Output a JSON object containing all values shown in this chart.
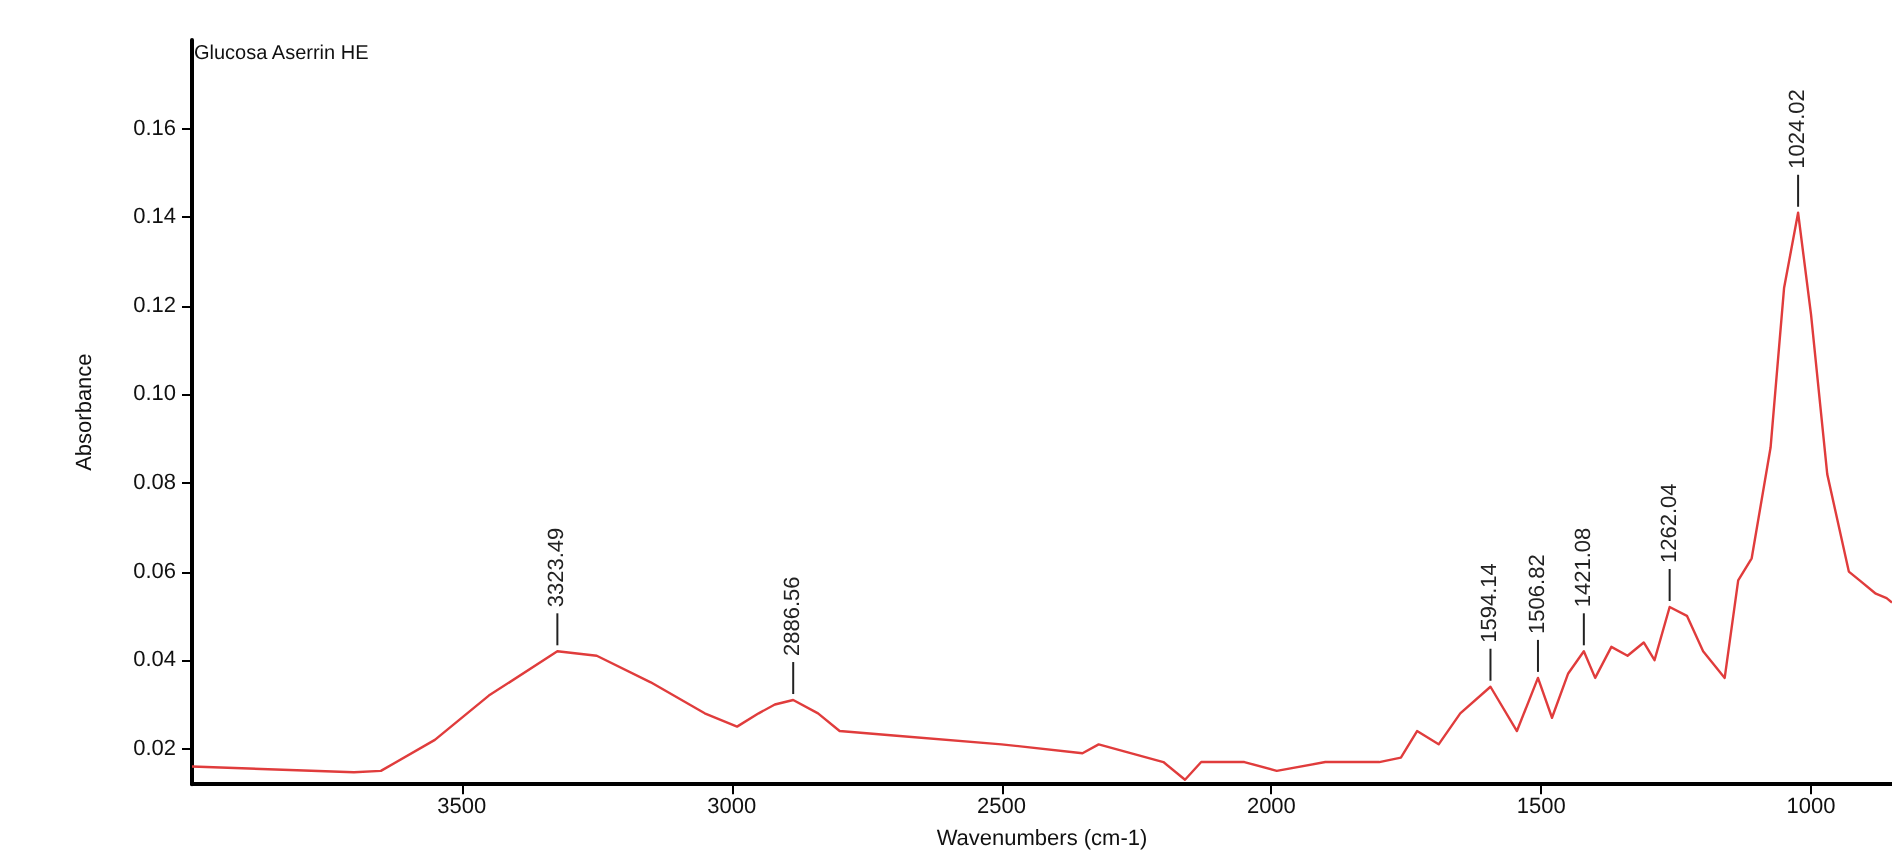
{
  "chart_data": {
    "type": "line",
    "title": "Glucosa Aserrin HE",
    "xlabel": "Wavenumbers (cm-1)",
    "ylabel": "Absorbance",
    "xlim": [
      4000,
      850
    ],
    "ylim": [
      0.012,
      0.18
    ],
    "xticks": [
      3500,
      3000,
      2500,
      2000,
      1500,
      1000
    ],
    "yticks": [
      0.02,
      0.04,
      0.06,
      0.08,
      {
        "value": 0.1,
        "label": "0.10"
      },
      0.12,
      0.14,
      0.16
    ],
    "grid": false,
    "marker": "none",
    "line_style": "solid",
    "series": [
      {
        "color": "#e03c3c",
        "x": [
          4000,
          3700,
          3650,
          3550,
          3450,
          3323,
          3250,
          3150,
          3050,
          2990,
          2950,
          2920,
          2886,
          2840,
          2800,
          2700,
          2500,
          2350,
          2320,
          2200,
          2160,
          2130,
          2050,
          1990,
          1900,
          1800,
          1760,
          1730,
          1690,
          1650,
          1594,
          1545,
          1506,
          1480,
          1450,
          1421,
          1400,
          1370,
          1340,
          1310,
          1290,
          1262,
          1230,
          1200,
          1160,
          1135,
          1110,
          1075,
          1050,
          1024,
          1000,
          970,
          930,
          910,
          880,
          860,
          850
        ],
        "values": [
          0.016,
          0.0147,
          0.015,
          0.022,
          0.032,
          0.042,
          0.041,
          0.035,
          0.028,
          0.025,
          0.028,
          0.03,
          0.031,
          0.028,
          0.024,
          0.023,
          0.021,
          0.019,
          0.021,
          0.017,
          0.013,
          0.017,
          0.017,
          0.015,
          0.017,
          0.017,
          0.018,
          0.024,
          0.021,
          0.028,
          0.034,
          0.024,
          0.036,
          0.027,
          0.037,
          0.042,
          0.036,
          0.043,
          0.041,
          0.044,
          0.04,
          0.052,
          0.05,
          0.042,
          0.036,
          0.058,
          0.063,
          0.088,
          0.124,
          0.141,
          0.118,
          0.082,
          0.06,
          0.058,
          0.055,
          0.054,
          0.053
        ]
      }
    ],
    "annotations": [
      {
        "text": "3323.49",
        "x": 3323,
        "y": 0.042
      },
      {
        "text": "2886.56",
        "x": 2886,
        "y": 0.031
      },
      {
        "text": "1594.14",
        "x": 1594,
        "y": 0.034
      },
      {
        "text": "1506.82",
        "x": 1506,
        "y": 0.036
      },
      {
        "text": "1421.08",
        "x": 1421,
        "y": 0.042
      },
      {
        "text": "1262.04",
        "x": 1262,
        "y": 0.052
      },
      {
        "text": "1024.02",
        "x": 1024,
        "y": 0.141
      }
    ]
  }
}
